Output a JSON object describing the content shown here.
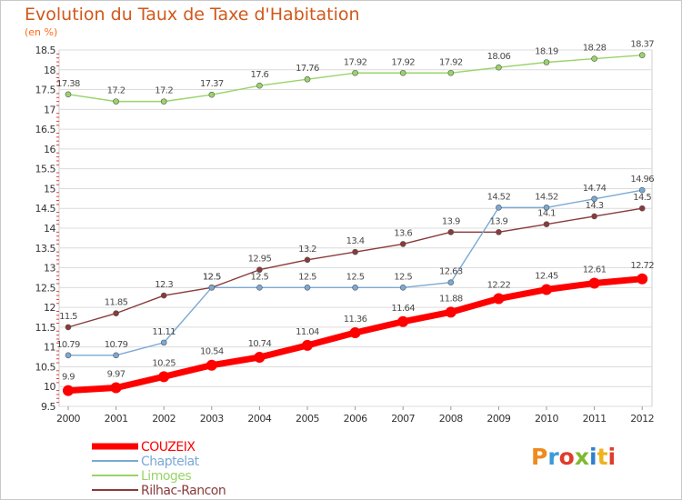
{
  "header": {
    "title": "Evolution du Taux de Taxe d'Habitation",
    "subtitle": "(en %)"
  },
  "logo": {
    "text": "Proxiti",
    "letter_colors": [
      "#f08a1c",
      "#3a9bd6",
      "#e03c2a",
      "#7dba2f",
      "#2f7fd0",
      "#f0b21c",
      "#e03c2a"
    ]
  },
  "chart_data": {
    "type": "line",
    "title": "Evolution du Taux de Taxe d'Habitation",
    "subtitle": "(en %)",
    "xlabel": "",
    "ylabel": "",
    "x": [
      "2000",
      "2001",
      "2002",
      "2003",
      "2004",
      "2005",
      "2006",
      "2007",
      "2008",
      "2009",
      "2010",
      "2011",
      "2012"
    ],
    "ylim": [
      9.5,
      18.5
    ],
    "yticks": [
      "9.5",
      "10",
      "10.5",
      "11",
      "11.5",
      "12",
      "12.5",
      "13",
      "13.5",
      "14",
      "14.5",
      "15",
      "15.5",
      "16",
      "16.5",
      "17",
      "17.5",
      "18",
      "18.5"
    ],
    "grid": "horizontal",
    "legend_position": "bottom-left",
    "series": [
      {
        "name": "COUZEIX",
        "color": "#ff0000",
        "values": [
          9.9,
          9.97,
          10.25,
          10.54,
          10.74,
          11.04,
          11.36,
          11.64,
          11.88,
          12.22,
          12.45,
          12.61,
          12.72
        ],
        "labels": [
          "9.9",
          "9.97",
          "10.25",
          "10.54",
          "10.74",
          "11.04",
          "11.36",
          "11.64",
          "11.88",
          "12.22",
          "12.45",
          "12.61",
          "12.72"
        ]
      },
      {
        "name": "Chaptelat",
        "color": "#7aa9d4",
        "values": [
          10.79,
          10.79,
          11.11,
          12.5,
          12.5,
          12.5,
          12.5,
          12.5,
          12.63,
          14.52,
          14.52,
          14.74,
          14.96
        ],
        "labels": [
          "10.79",
          "10.79",
          "11.11",
          "12.5",
          "12.5",
          "12.5",
          "12.5",
          "12.5",
          "12.63",
          "14.52",
          "14.52",
          "14.74",
          "14.96"
        ]
      },
      {
        "name": "Limoges",
        "color": "#99d469",
        "values": [
          17.38,
          17.2,
          17.2,
          17.37,
          17.6,
          17.76,
          17.92,
          17.92,
          17.92,
          18.06,
          18.19,
          18.28,
          18.37
        ],
        "labels": [
          "17.38",
          "17.2",
          "17.2",
          "17.37",
          "17.6",
          "17.76",
          "17.92",
          "17.92",
          "17.92",
          "18.06",
          "18.19",
          "18.28",
          "18.37"
        ]
      },
      {
        "name": "Rilhac-Rancon",
        "color": "#8a3a3a",
        "values": [
          11.5,
          11.85,
          12.3,
          12.5,
          12.95,
          13.2,
          13.4,
          13.6,
          13.9,
          13.9,
          14.1,
          14.3,
          14.5
        ],
        "labels": [
          "11.5",
          "11.85",
          "12.3",
          "12.5",
          "12.95",
          "13.2",
          "13.4",
          "13.6",
          "13.9",
          "13.9",
          "14.1",
          "14.3",
          "14.5"
        ]
      }
    ]
  }
}
